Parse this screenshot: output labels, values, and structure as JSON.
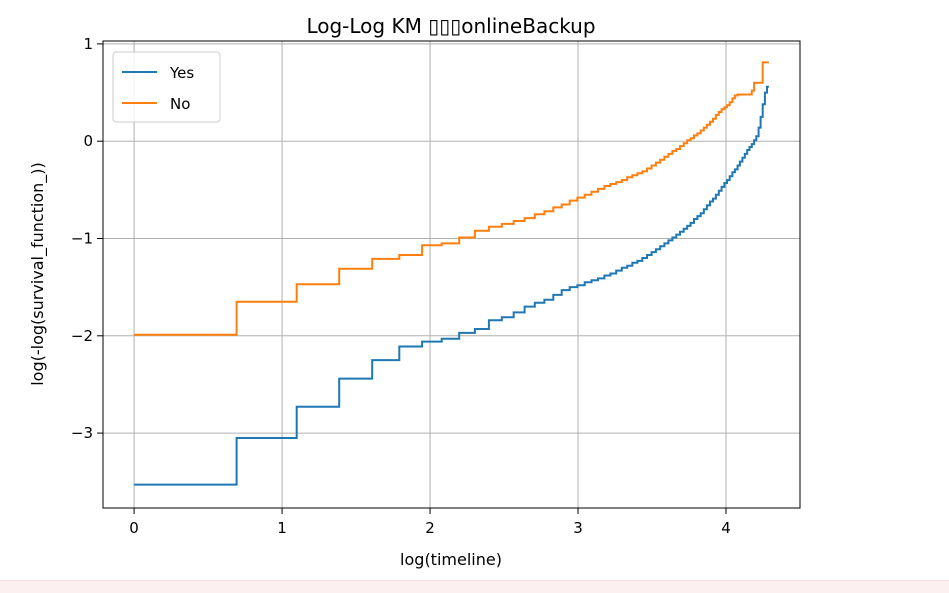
{
  "chart_data": {
    "type": "line",
    "title": "Log-Log KM ▯▯▯onlineBackup",
    "xlabel": "log(timeline)",
    "ylabel": "log(-log(survival_function_))",
    "xlim": [
      -0.21,
      4.5
    ],
    "ylim": [
      -3.77,
      1.03
    ],
    "x_ticks": [
      0,
      1,
      2,
      3,
      4
    ],
    "x_tick_labels": [
      "0",
      "1",
      "2",
      "3",
      "4"
    ],
    "y_ticks": [
      1,
      0,
      -1,
      -2,
      -3
    ],
    "y_tick_labels": [
      "1",
      "0",
      "−1",
      "−2",
      "−3"
    ],
    "grid": true,
    "legend_position": "top-left",
    "step": "post",
    "series": [
      {
        "name": "Yes",
        "color": "#1f77b4",
        "points": [
          [
            0.0,
            -3.53
          ],
          [
            0.693,
            -3.05
          ],
          [
            1.099,
            -2.73
          ],
          [
            1.386,
            -2.44
          ],
          [
            1.609,
            -2.25
          ],
          [
            1.792,
            -2.11
          ],
          [
            1.946,
            -2.06
          ],
          [
            2.079,
            -2.03
          ],
          [
            2.197,
            -1.97
          ],
          [
            2.303,
            -1.93
          ],
          [
            2.398,
            -1.84
          ],
          [
            2.485,
            -1.81
          ],
          [
            2.565,
            -1.76
          ],
          [
            2.639,
            -1.7
          ],
          [
            2.708,
            -1.66
          ],
          [
            2.773,
            -1.63
          ],
          [
            2.833,
            -1.58
          ],
          [
            2.89,
            -1.53
          ],
          [
            2.944,
            -1.5
          ],
          [
            2.996,
            -1.48
          ],
          [
            3.045,
            -1.45
          ],
          [
            3.091,
            -1.43
          ],
          [
            3.135,
            -1.41
          ],
          [
            3.178,
            -1.38
          ],
          [
            3.219,
            -1.36
          ],
          [
            3.258,
            -1.33
          ],
          [
            3.296,
            -1.3
          ],
          [
            3.332,
            -1.28
          ],
          [
            3.367,
            -1.25
          ],
          [
            3.401,
            -1.23
          ],
          [
            3.434,
            -1.2
          ],
          [
            3.466,
            -1.17
          ],
          [
            3.497,
            -1.14
          ],
          [
            3.526,
            -1.11
          ],
          [
            3.555,
            -1.08
          ],
          [
            3.584,
            -1.05
          ],
          [
            3.611,
            -1.02
          ],
          [
            3.638,
            -0.99
          ],
          [
            3.664,
            -0.96
          ],
          [
            3.689,
            -0.93
          ],
          [
            3.714,
            -0.9
          ],
          [
            3.738,
            -0.87
          ],
          [
            3.761,
            -0.84
          ],
          [
            3.784,
            -0.8
          ],
          [
            3.807,
            -0.77
          ],
          [
            3.829,
            -0.74
          ],
          [
            3.85,
            -0.7
          ],
          [
            3.871,
            -0.66
          ],
          [
            3.892,
            -0.62
          ],
          [
            3.912,
            -0.59
          ],
          [
            3.932,
            -0.55
          ],
          [
            3.951,
            -0.51
          ],
          [
            3.97,
            -0.47
          ],
          [
            3.989,
            -0.43
          ],
          [
            4.007,
            -0.4
          ],
          [
            4.025,
            -0.36
          ],
          [
            4.043,
            -0.32
          ],
          [
            4.06,
            -0.29
          ],
          [
            4.078,
            -0.25
          ],
          [
            4.094,
            -0.21
          ],
          [
            4.111,
            -0.17
          ],
          [
            4.127,
            -0.13
          ],
          [
            4.143,
            -0.09
          ],
          [
            4.159,
            -0.06
          ],
          [
            4.174,
            -0.03
          ],
          [
            4.19,
            0.01
          ],
          [
            4.205,
            0.05
          ],
          [
            4.22,
            0.14
          ],
          [
            4.234,
            0.25
          ],
          [
            4.248,
            0.38
          ],
          [
            4.263,
            0.5
          ],
          [
            4.277,
            0.56
          ],
          [
            4.29,
            0.56
          ]
        ]
      },
      {
        "name": "No",
        "color": "#ff7f0e",
        "points": [
          [
            0.0,
            -1.99
          ],
          [
            0.693,
            -1.65
          ],
          [
            1.099,
            -1.47
          ],
          [
            1.386,
            -1.31
          ],
          [
            1.609,
            -1.21
          ],
          [
            1.792,
            -1.17
          ],
          [
            1.946,
            -1.07
          ],
          [
            2.079,
            -1.05
          ],
          [
            2.197,
            -0.99
          ],
          [
            2.303,
            -0.92
          ],
          [
            2.398,
            -0.88
          ],
          [
            2.485,
            -0.85
          ],
          [
            2.565,
            -0.82
          ],
          [
            2.639,
            -0.79
          ],
          [
            2.708,
            -0.75
          ],
          [
            2.773,
            -0.72
          ],
          [
            2.833,
            -0.68
          ],
          [
            2.89,
            -0.65
          ],
          [
            2.944,
            -0.61
          ],
          [
            2.996,
            -0.58
          ],
          [
            3.045,
            -0.55
          ],
          [
            3.091,
            -0.52
          ],
          [
            3.135,
            -0.49
          ],
          [
            3.178,
            -0.46
          ],
          [
            3.219,
            -0.44
          ],
          [
            3.258,
            -0.42
          ],
          [
            3.296,
            -0.4
          ],
          [
            3.332,
            -0.37
          ],
          [
            3.367,
            -0.35
          ],
          [
            3.401,
            -0.33
          ],
          [
            3.434,
            -0.31
          ],
          [
            3.466,
            -0.28
          ],
          [
            3.497,
            -0.25
          ],
          [
            3.526,
            -0.22
          ],
          [
            3.555,
            -0.19
          ],
          [
            3.584,
            -0.16
          ],
          [
            3.611,
            -0.13
          ],
          [
            3.638,
            -0.1
          ],
          [
            3.664,
            -0.08
          ],
          [
            3.689,
            -0.05
          ],
          [
            3.714,
            -0.02
          ],
          [
            3.738,
            0.01
          ],
          [
            3.761,
            0.03
          ],
          [
            3.784,
            0.06
          ],
          [
            3.807,
            0.08
          ],
          [
            3.829,
            0.11
          ],
          [
            3.85,
            0.14
          ],
          [
            3.871,
            0.17
          ],
          [
            3.892,
            0.2
          ],
          [
            3.912,
            0.23
          ],
          [
            3.932,
            0.27
          ],
          [
            3.951,
            0.3
          ],
          [
            3.97,
            0.33
          ],
          [
            3.989,
            0.35
          ],
          [
            4.007,
            0.37
          ],
          [
            4.025,
            0.4
          ],
          [
            4.043,
            0.44
          ],
          [
            4.06,
            0.47
          ],
          [
            4.078,
            0.48
          ],
          [
            4.111,
            0.48
          ],
          [
            4.143,
            0.48
          ],
          [
            4.174,
            0.52
          ],
          [
            4.19,
            0.6
          ],
          [
            4.234,
            0.6
          ],
          [
            4.248,
            0.81
          ],
          [
            4.29,
            0.81
          ]
        ]
      }
    ]
  }
}
